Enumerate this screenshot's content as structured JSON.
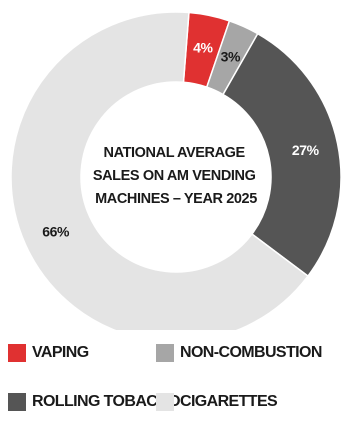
{
  "chart_data": {
    "type": "pie",
    "variant": "donut",
    "title": "NATIONAL AVERAGE SALES ON AM VENDING MACHINES – YEAR 2025",
    "title_lines": [
      "NATIONAL AVERAGE",
      "SALES ON AM VENDING",
      "MACHINES – YEAR 2025"
    ],
    "slices": [
      {
        "label": "VAPING",
        "value": 4,
        "display": "4%",
        "color": "#e03131"
      },
      {
        "label": "NON-COMBUSTION",
        "value": 3,
        "display": "3%",
        "color": "#a6a6a6"
      },
      {
        "label": "ROLLING TOBACCO",
        "value": 27,
        "display": "27%",
        "color": "#555555"
      },
      {
        "label": "CIGARETTES",
        "value": 66,
        "display": "66%",
        "color": "#e4e4e4"
      }
    ],
    "legend_position": "bottom",
    "start_angle_deg": 4.5,
    "direction": "clockwise"
  }
}
